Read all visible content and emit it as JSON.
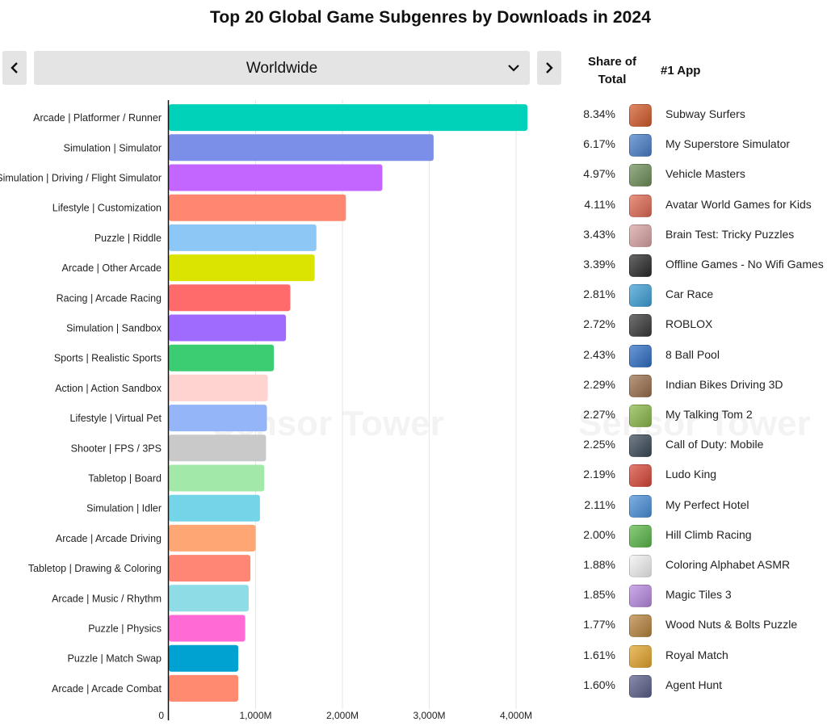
{
  "title": "Top 20 Global Game Subgenres by Downloads in 2024",
  "region": {
    "selected": "Worldwide"
  },
  "nav": {
    "prev_icon": "chevron-left-icon",
    "next_icon": "chevron-right-icon",
    "dropdown_icon": "chevron-down-icon"
  },
  "table_headers": {
    "share": "Share of Total",
    "app": "#1 App"
  },
  "watermark": "Sensor Tower",
  "chart_data": {
    "type": "bar",
    "orientation": "horizontal",
    "title": "Top 20 Global Game Subgenres by Downloads in 2024",
    "xlim": [
      0,
      4200
    ],
    "xticks": [
      0,
      1000,
      2000,
      3000,
      4000
    ],
    "xtick_labels": [
      "0",
      "1,000M",
      "2,000M",
      "3,000M",
      "4,000M"
    ],
    "grid": true,
    "categories": [
      "Arcade | Platformer / Runner",
      "Simulation | Simulator",
      "Simulation | Driving / Flight Simulator",
      "Lifestyle | Customization",
      "Puzzle | Riddle",
      "Arcade | Other Arcade",
      "Racing | Arcade Racing",
      "Simulation | Sandbox",
      "Sports | Realistic Sports",
      "Action | Action Sandbox",
      "Lifestyle | Virtual Pet",
      "Shooter | FPS / 3PS",
      "Tabletop | Board",
      "Simulation | Idler",
      "Arcade | Arcade Driving",
      "Tabletop | Drawing & Coloring",
      "Arcade | Music / Rhythm",
      "Puzzle | Physics",
      "Puzzle | Match Swap",
      "Arcade | Arcade Combat"
    ],
    "values": [
      4130,
      3050,
      2460,
      2040,
      1700,
      1680,
      1400,
      1350,
      1210,
      1140,
      1130,
      1120,
      1100,
      1050,
      1000,
      940,
      920,
      880,
      800,
      800
    ],
    "colors": [
      "#00d1b9",
      "#7b8ee8",
      "#c266ff",
      "#ff8770",
      "#8cc7f5",
      "#dbe300",
      "#ff6b6b",
      "#9f6bff",
      "#3ccd72",
      "#ffd3cf",
      "#94b5f7",
      "#c9c9c9",
      "#a1e8a9",
      "#74d5e8",
      "#ffa774",
      "#ff8675",
      "#8ddce6",
      "#ff6ad5",
      "#00a2d1",
      "#ff8a6f"
    ]
  },
  "table_rows": [
    {
      "share": "8.34%",
      "app": "Subway Surfers",
      "icon": "subway-surfers-icon",
      "icon_color": "#d35b2b"
    },
    {
      "share": "6.17%",
      "app": "My Superstore Simulator",
      "icon": "my-superstore-simulator-icon",
      "icon_color": "#4a7fc9"
    },
    {
      "share": "4.97%",
      "app": "Vehicle Masters",
      "icon": "vehicle-masters-icon",
      "icon_color": "#6f8f5a"
    },
    {
      "share": "4.11%",
      "app": "Avatar World Games for Kids",
      "icon": "avatar-world-icon",
      "icon_color": "#e06a55"
    },
    {
      "share": "3.43%",
      "app": "Brain Test: Tricky Puzzles",
      "icon": "brain-test-icon",
      "icon_color": "#d9a3a3"
    },
    {
      "share": "3.39%",
      "app": "Offline Games - No Wifi Games",
      "icon": "offline-games-icon",
      "icon_color": "#2b2b2b"
    },
    {
      "share": "2.81%",
      "app": "Car Race",
      "icon": "car-race-icon",
      "icon_color": "#3ea0d6"
    },
    {
      "share": "2.72%",
      "app": "ROBLOX",
      "icon": "roblox-icon",
      "icon_color": "#3a3a3a"
    },
    {
      "share": "2.43%",
      "app": "8 Ball Pool",
      "icon": "8-ball-pool-icon",
      "icon_color": "#2f6fc4"
    },
    {
      "share": "2.29%",
      "app": "Indian Bikes Driving 3D",
      "icon": "indian-bikes-icon",
      "icon_color": "#9a6f4c"
    },
    {
      "share": "2.27%",
      "app": "My Talking Tom 2",
      "icon": "my-talking-tom-icon",
      "icon_color": "#8ab84a"
    },
    {
      "share": "2.25%",
      "app": "Call of Duty: Mobile",
      "icon": "call-of-duty-icon",
      "icon_color": "#3c4a5a"
    },
    {
      "share": "2.19%",
      "app": "Ludo King",
      "icon": "ludo-king-icon",
      "icon_color": "#d8483a"
    },
    {
      "share": "2.11%",
      "app": "My Perfect Hotel",
      "icon": "my-perfect-hotel-icon",
      "icon_color": "#4a90d9"
    },
    {
      "share": "2.00%",
      "app": "Hill Climb Racing",
      "icon": "hill-climb-racing-icon",
      "icon_color": "#5cb84a"
    },
    {
      "share": "1.88%",
      "app": "Coloring Alphabet ASMR",
      "icon": "coloring-alphabet-icon",
      "icon_color": "#f2f2f2"
    },
    {
      "share": "1.85%",
      "app": "Magic Tiles 3",
      "icon": "magic-tiles-icon",
      "icon_color": "#b98ae0"
    },
    {
      "share": "1.77%",
      "app": "Wood Nuts & Bolts Puzzle",
      "icon": "wood-nuts-bolts-icon",
      "icon_color": "#b8843f"
    },
    {
      "share": "1.61%",
      "app": "Royal Match",
      "icon": "royal-match-icon",
      "icon_color": "#e3a52c"
    },
    {
      "share": "1.60%",
      "app": "Agent Hunt",
      "icon": "agent-hunt-icon",
      "icon_color": "#5a5f8a"
    }
  ]
}
